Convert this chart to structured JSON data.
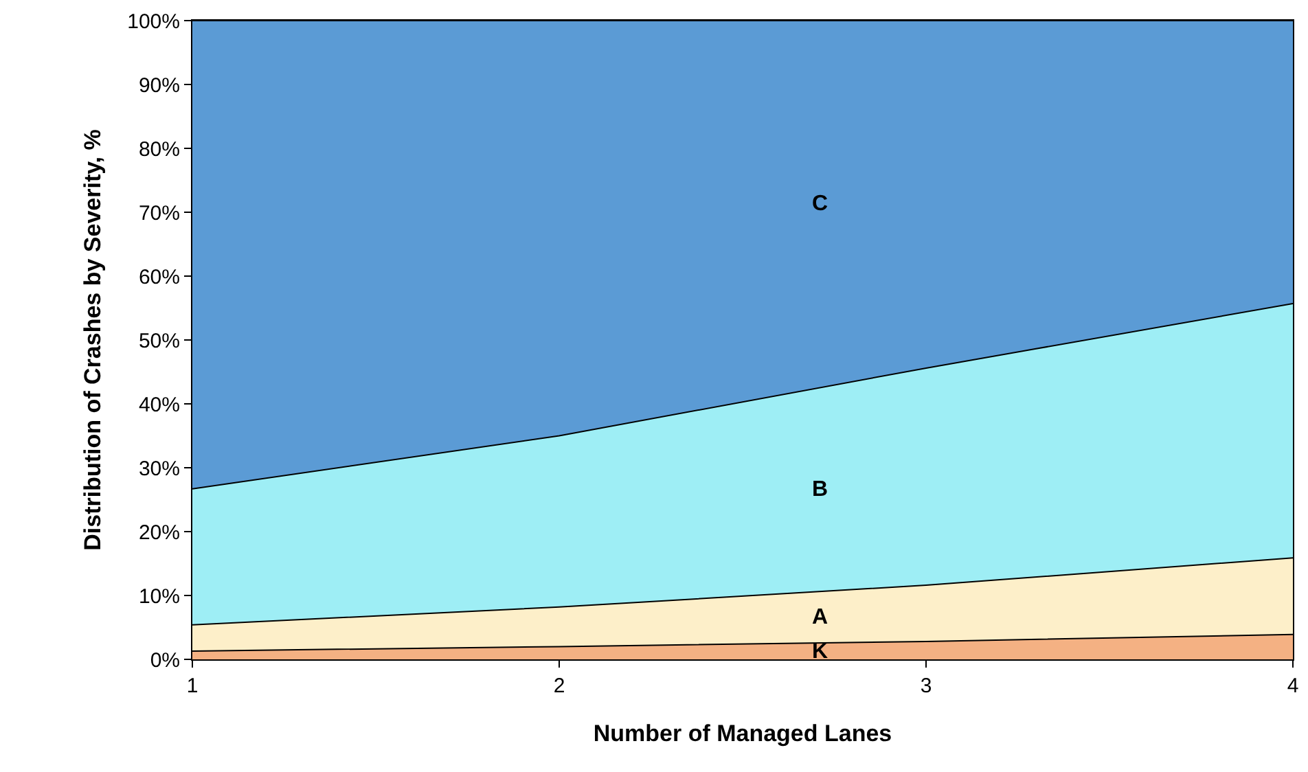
{
  "chart_data": {
    "type": "area",
    "stacked": true,
    "xlabel": "Number of Managed Lanes",
    "ylabel": "Distribution of Crashes by Severity, %",
    "x": [
      1,
      2,
      3,
      4
    ],
    "xlim": [
      1,
      4
    ],
    "xticks": [
      1,
      2,
      3,
      4
    ],
    "ylim": [
      0,
      100
    ],
    "yticks": [
      {
        "value": 0,
        "label": "0%"
      },
      {
        "value": 10,
        "label": "10%"
      },
      {
        "value": 20,
        "label": "20%"
      },
      {
        "value": 30,
        "label": "30%"
      },
      {
        "value": 40,
        "label": "40%"
      },
      {
        "value": 50,
        "label": "50%"
      },
      {
        "value": 60,
        "label": "60%"
      },
      {
        "value": 70,
        "label": "70%"
      },
      {
        "value": 80,
        "label": "80%"
      },
      {
        "value": 90,
        "label": "90%"
      },
      {
        "value": 100,
        "label": "100%"
      }
    ],
    "legend": false,
    "series": [
      {
        "name": "K",
        "color": "#f4b183",
        "values": [
          1.3,
          2,
          2.8,
          3.9
        ]
      },
      {
        "name": "A",
        "color": "#fdefc9",
        "values": [
          4.1,
          6.2,
          8.8,
          12
        ]
      },
      {
        "name": "B",
        "color": "#9eeef5",
        "values": [
          21.3,
          26.8,
          34,
          39.8
        ]
      },
      {
        "name": "C",
        "color": "#5b9bd5",
        "values": [
          73.3,
          65,
          54.4,
          44.3
        ]
      }
    ]
  }
}
